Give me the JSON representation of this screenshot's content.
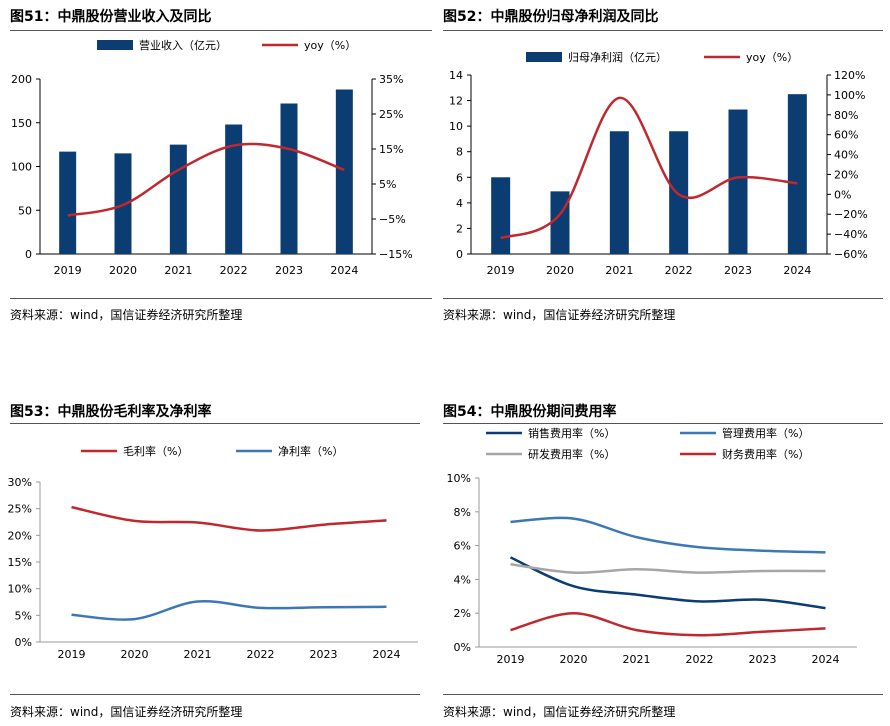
{
  "panels": [
    {
      "id": "fig51",
      "title": "图51：中鼎股份营业收入及同比",
      "source": "资料来源：wind，国信证券经济研究所整理",
      "legend": [
        "营业收入（亿元）",
        "yoy（%）"
      ]
    },
    {
      "id": "fig52",
      "title": "图52：中鼎股份归母净利润及同比",
      "source": "资料来源：wind，国信证券经济研究所整理",
      "legend": [
        "归母净利润（亿元）",
        "yoy（%）"
      ]
    },
    {
      "id": "fig53",
      "title": "图53：中鼎股份毛利率及净利率",
      "source": "资料来源：wind，国信证券经济研究所整理",
      "legend": [
        "毛利率（%）",
        "净利率（%）"
      ]
    },
    {
      "id": "fig54",
      "title": "图54：中鼎股份期间费用率",
      "source": "资料来源：wind，国信证券经济研究所整理",
      "legend": [
        "销售费用率（%）",
        "管理费用率（%）",
        "研发费用率（%）",
        "财务费用率（%）"
      ]
    }
  ],
  "colors": {
    "navy": "#0b3c72",
    "red": "#c0282e",
    "blue": "#3d78b6",
    "gray": "#a6a6a6"
  },
  "chart_data": [
    {
      "type": "bar",
      "title": "图51：中鼎股份营业收入及同比",
      "categories": [
        "2019",
        "2020",
        "2021",
        "2022",
        "2023",
        "2024"
      ],
      "series": [
        {
          "name": "营业收入（亿元）",
          "type": "bar",
          "axis": "left",
          "values": [
            117,
            115,
            125,
            148,
            172,
            188
          ]
        },
        {
          "name": "yoy（%）",
          "type": "line",
          "axis": "right",
          "values": [
            -4,
            -1,
            9,
            16,
            15,
            9
          ]
        }
      ],
      "y_left": {
        "range": [
          0,
          200
        ],
        "ticks": [
          0,
          50,
          100,
          150,
          200
        ],
        "tick_labels": [
          "0",
          "50",
          "100",
          "150",
          "200"
        ]
      },
      "y_right": {
        "range": [
          -15,
          35
        ],
        "ticks": [
          -15,
          -5,
          5,
          15,
          25,
          35
        ],
        "tick_labels": [
          "−15%",
          "−5%",
          "5%",
          "15%",
          "25%",
          "35%"
        ]
      },
      "legend": "top"
    },
    {
      "type": "bar",
      "title": "图52：中鼎股份归母净利润及同比",
      "categories": [
        "2019",
        "2020",
        "2021",
        "2022",
        "2023",
        "2024"
      ],
      "series": [
        {
          "name": "归母净利润（亿元）",
          "type": "bar",
          "axis": "left",
          "values": [
            6.0,
            4.9,
            9.6,
            9.6,
            11.3,
            12.5
          ]
        },
        {
          "name": "yoy（%）",
          "type": "line",
          "axis": "right",
          "values": [
            -44,
            -20,
            97,
            0,
            17,
            11
          ]
        }
      ],
      "y_left": {
        "range": [
          0,
          14
        ],
        "ticks": [
          0,
          2,
          4,
          6,
          8,
          10,
          12,
          14
        ],
        "tick_labels": [
          "0",
          "2",
          "4",
          "6",
          "8",
          "10",
          "12",
          "14"
        ]
      },
      "y_right": {
        "range": [
          -60,
          120
        ],
        "ticks": [
          -60,
          -40,
          -20,
          0,
          20,
          40,
          60,
          80,
          100,
          120
        ],
        "tick_labels": [
          "−60%",
          "−40%",
          "−20%",
          "0%",
          "20%",
          "40%",
          "60%",
          "80%",
          "100%",
          "120%"
        ]
      },
      "legend": "top"
    },
    {
      "type": "line",
      "title": "图53：中鼎股份毛利率及净利率",
      "categories": [
        "2019",
        "2020",
        "2021",
        "2022",
        "2023",
        "2024"
      ],
      "series": [
        {
          "name": "毛利率（%）",
          "values": [
            25.3,
            22.7,
            22.4,
            20.9,
            22.0,
            22.8
          ]
        },
        {
          "name": "净利率（%）",
          "values": [
            5.1,
            4.3,
            7.6,
            6.4,
            6.5,
            6.6
          ]
        }
      ],
      "y": {
        "range": [
          0,
          30
        ],
        "ticks": [
          0,
          5,
          10,
          15,
          20,
          25,
          30
        ],
        "tick_labels": [
          "0%",
          "5%",
          "10%",
          "15%",
          "20%",
          "25%",
          "30%"
        ]
      },
      "legend": "top"
    },
    {
      "type": "line",
      "title": "图54：中鼎股份期间费用率",
      "categories": [
        "2019",
        "2020",
        "2021",
        "2022",
        "2023",
        "2024"
      ],
      "series": [
        {
          "name": "销售费用率（%）",
          "values": [
            5.3,
            3.6,
            3.1,
            2.7,
            2.8,
            2.3
          ]
        },
        {
          "name": "管理费用率（%）",
          "values": [
            7.4,
            7.6,
            6.5,
            5.9,
            5.7,
            5.6
          ]
        },
        {
          "name": "研发费用率（%）",
          "values": [
            4.9,
            4.4,
            4.6,
            4.4,
            4.5,
            4.5
          ]
        },
        {
          "name": "财务费用率（%）",
          "values": [
            1.0,
            2.0,
            1.0,
            0.7,
            0.9,
            1.1
          ]
        }
      ],
      "y": {
        "range": [
          0,
          10
        ],
        "ticks": [
          0,
          2,
          4,
          6,
          8,
          10
        ],
        "tick_labels": [
          "0%",
          "2%",
          "4%",
          "6%",
          "8%",
          "10%"
        ]
      },
      "legend": "top"
    }
  ]
}
